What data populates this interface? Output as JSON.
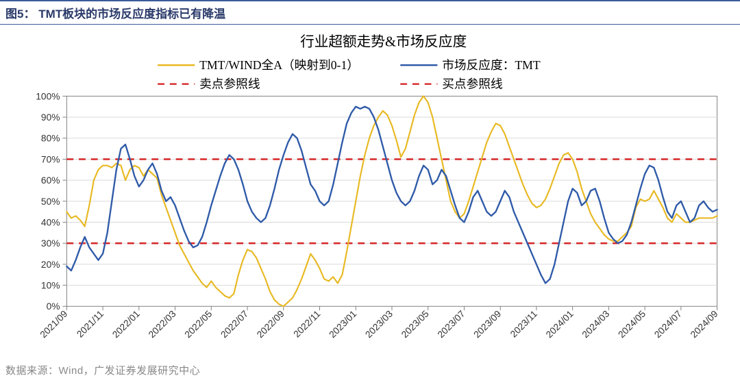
{
  "header": {
    "figure_label": "图5：",
    "figure_title": "TMT板块的市场反应度指标已有降温"
  },
  "footer": {
    "source": "数据来源：Wind，广发证券发展研究中心"
  },
  "chart": {
    "type": "line",
    "title": "行业超额走势&市场反应度",
    "title_fontsize": 21,
    "background_color": "#ffffff",
    "plot_border_color": "#808080",
    "grid_color": "#d9d9d9",
    "legend": {
      "position": "top",
      "items": [
        {
          "key": "series_tmt_wind",
          "label": "TMT/WIND全A（映射到0-1）",
          "color": "#e8b923",
          "style": "solid",
          "width": 2.5
        },
        {
          "key": "series_reaction",
          "label": "市场反应度：TMT",
          "color": "#2f5aa8",
          "style": "solid",
          "width": 2.5
        },
        {
          "key": "ref_sell",
          "label": "卖点参照线",
          "color": "#d62728",
          "style": "dashed",
          "width": 2.5
        },
        {
          "key": "ref_buy",
          "label": "买点参照线",
          "color": "#d62728",
          "style": "dashed",
          "width": 2.5
        }
      ]
    },
    "y_axis": {
      "min": 0,
      "max": 1.0,
      "step": 0.1,
      "format": "percent",
      "tick_labels": [
        "0%",
        "10%",
        "20%",
        "30%",
        "40%",
        "50%",
        "60%",
        "70%",
        "80%",
        "90%",
        "100%"
      ],
      "label_fontsize": 14
    },
    "x_axis": {
      "labels": [
        "2021/09",
        "2021/11",
        "2022/01",
        "2022/03",
        "2022/05",
        "2022/07",
        "2022/09",
        "2022/11",
        "2023/01",
        "2023/03",
        "2023/05",
        "2023/07",
        "2023/09",
        "2023/11",
        "2024/01",
        "2024/03",
        "2024/05",
        "2024/07",
        "2024/09"
      ],
      "label_rotation": -45,
      "label_fontsize": 14,
      "ticks_between": 7,
      "total_points": 145
    },
    "reference_lines": [
      {
        "key": "ref_sell",
        "value": 0.7,
        "color": "#d62728",
        "dash": "10,8",
        "width": 2.5
      },
      {
        "key": "ref_buy",
        "value": 0.3,
        "color": "#d62728",
        "dash": "10,8",
        "width": 2.5
      }
    ],
    "series": [
      {
        "key": "series_tmt_wind",
        "color": "#e8b923",
        "width": 2.2,
        "values": [
          0.45,
          0.42,
          0.43,
          0.41,
          0.38,
          0.48,
          0.6,
          0.65,
          0.67,
          0.67,
          0.66,
          0.68,
          0.67,
          0.6,
          0.65,
          0.67,
          0.66,
          0.62,
          0.65,
          0.63,
          0.61,
          0.53,
          0.47,
          0.41,
          0.35,
          0.29,
          0.25,
          0.21,
          0.17,
          0.14,
          0.11,
          0.09,
          0.12,
          0.09,
          0.07,
          0.05,
          0.04,
          0.06,
          0.15,
          0.22,
          0.27,
          0.26,
          0.23,
          0.18,
          0.13,
          0.07,
          0.03,
          0.01,
          0.0,
          0.02,
          0.04,
          0.08,
          0.13,
          0.19,
          0.25,
          0.22,
          0.18,
          0.13,
          0.12,
          0.14,
          0.11,
          0.15,
          0.26,
          0.38,
          0.5,
          0.62,
          0.72,
          0.8,
          0.86,
          0.9,
          0.93,
          0.91,
          0.86,
          0.79,
          0.71,
          0.75,
          0.83,
          0.91,
          0.97,
          1.0,
          0.97,
          0.9,
          0.8,
          0.7,
          0.6,
          0.5,
          0.45,
          0.42,
          0.44,
          0.5,
          0.57,
          0.64,
          0.71,
          0.78,
          0.83,
          0.87,
          0.86,
          0.82,
          0.76,
          0.7,
          0.64,
          0.58,
          0.53,
          0.49,
          0.47,
          0.48,
          0.51,
          0.56,
          0.62,
          0.68,
          0.72,
          0.73,
          0.7,
          0.64,
          0.56,
          0.5,
          0.44,
          0.4,
          0.37,
          0.34,
          0.32,
          0.31,
          0.31,
          0.33,
          0.35,
          0.38,
          0.47,
          0.51,
          0.5,
          0.51,
          0.55,
          0.51,
          0.47,
          0.42,
          0.4,
          0.44,
          0.42,
          0.4,
          0.4,
          0.41,
          0.42,
          0.42,
          0.42,
          0.42,
          0.43
        ]
      },
      {
        "key": "series_reaction",
        "color": "#2f5aa8",
        "width": 2.4,
        "values": [
          0.19,
          0.17,
          0.22,
          0.28,
          0.33,
          0.28,
          0.25,
          0.22,
          0.25,
          0.35,
          0.5,
          0.65,
          0.75,
          0.77,
          0.7,
          0.62,
          0.57,
          0.6,
          0.65,
          0.68,
          0.63,
          0.55,
          0.5,
          0.52,
          0.48,
          0.42,
          0.36,
          0.31,
          0.28,
          0.29,
          0.33,
          0.4,
          0.48,
          0.55,
          0.62,
          0.68,
          0.72,
          0.7,
          0.65,
          0.58,
          0.5,
          0.45,
          0.42,
          0.4,
          0.42,
          0.48,
          0.56,
          0.65,
          0.72,
          0.78,
          0.82,
          0.8,
          0.74,
          0.66,
          0.58,
          0.55,
          0.5,
          0.48,
          0.5,
          0.58,
          0.68,
          0.78,
          0.87,
          0.92,
          0.95,
          0.94,
          0.95,
          0.94,
          0.9,
          0.84,
          0.76,
          0.68,
          0.6,
          0.54,
          0.5,
          0.48,
          0.5,
          0.55,
          0.62,
          0.67,
          0.65,
          0.58,
          0.6,
          0.65,
          0.62,
          0.55,
          0.48,
          0.42,
          0.4,
          0.45,
          0.52,
          0.55,
          0.5,
          0.45,
          0.43,
          0.45,
          0.5,
          0.55,
          0.52,
          0.45,
          0.4,
          0.35,
          0.3,
          0.25,
          0.2,
          0.15,
          0.11,
          0.13,
          0.2,
          0.3,
          0.4,
          0.5,
          0.56,
          0.54,
          0.48,
          0.5,
          0.55,
          0.56,
          0.5,
          0.42,
          0.35,
          0.32,
          0.3,
          0.31,
          0.34,
          0.4,
          0.48,
          0.56,
          0.63,
          0.67,
          0.66,
          0.6,
          0.52,
          0.45,
          0.42,
          0.48,
          0.5,
          0.45,
          0.4,
          0.42,
          0.48,
          0.5,
          0.47,
          0.45,
          0.46
        ]
      }
    ]
  }
}
